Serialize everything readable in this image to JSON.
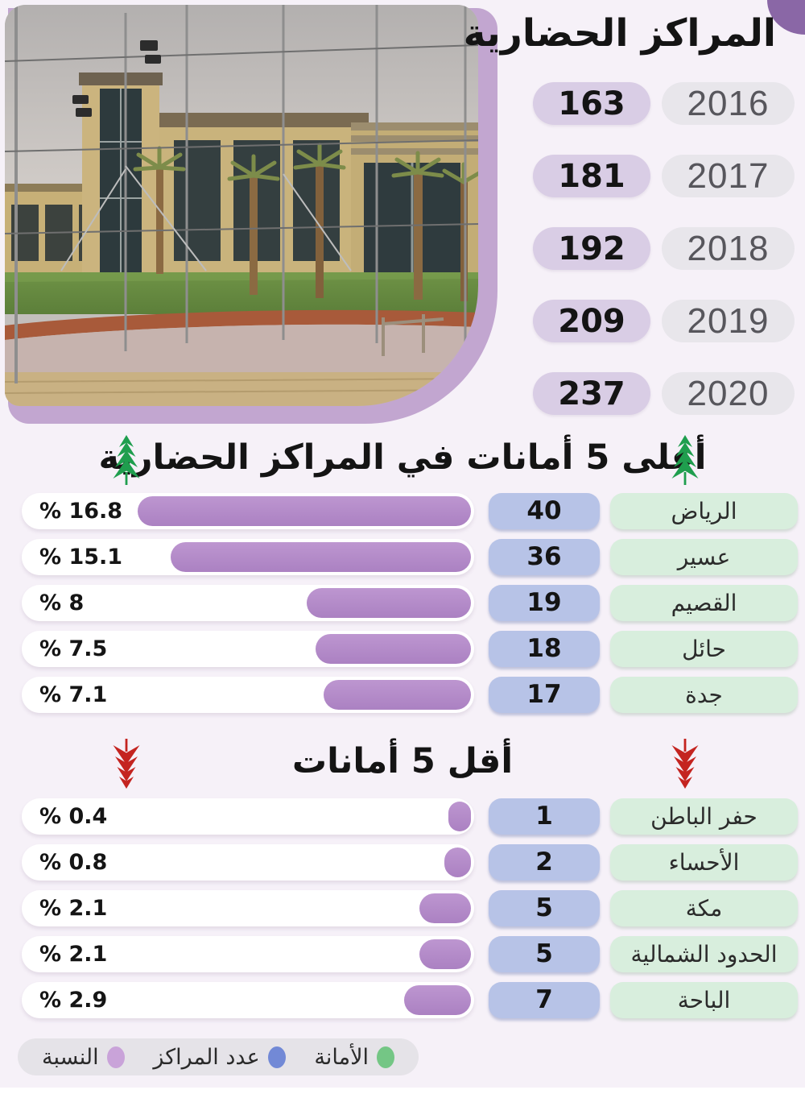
{
  "header": {
    "title": "المراكز الحضارية",
    "years": [
      {
        "value": "163",
        "year": "2016"
      },
      {
        "value": "181",
        "year": "2017"
      },
      {
        "value": "192",
        "year": "2018"
      },
      {
        "value": "209",
        "year": "2019"
      },
      {
        "value": "237",
        "year": "2020"
      }
    ]
  },
  "top5": {
    "title": "أعلى 5 أمانات في المراكز الحضارية",
    "rows": [
      {
        "name": "الرياض",
        "count": "40",
        "pct": 16.8,
        "pct_label": "% 16.8"
      },
      {
        "name": "عسير",
        "count": "36",
        "pct": 15.1,
        "pct_label": "% 15.1"
      },
      {
        "name": "القصيم",
        "count": "19",
        "pct": 8,
        "pct_label": "% 8"
      },
      {
        "name": "حائل",
        "count": "18",
        "pct": 7.5,
        "pct_label": "% 7.5"
      },
      {
        "name": "جدة",
        "count": "17",
        "pct": 7.1,
        "pct_label": "% 7.1"
      }
    ]
  },
  "bottom5": {
    "title": "أقل 5 أمانات",
    "rows": [
      {
        "name": "حفر الباطن",
        "count": "1",
        "pct": 0.4,
        "pct_label": "% 0.4"
      },
      {
        "name": "الأحساء",
        "count": "2",
        "pct": 0.8,
        "pct_label": "% 0.8"
      },
      {
        "name": "مكة",
        "count": "5",
        "pct": 2.1,
        "pct_label": "% 2.1"
      },
      {
        "name": "الحدود الشمالية",
        "count": "5",
        "pct": 2.1,
        "pct_label": "% 2.1"
      },
      {
        "name": "الباحة",
        "count": "7",
        "pct": 2.9,
        "pct_label": "% 2.9"
      }
    ]
  },
  "legend": {
    "items": [
      {
        "label": "الأمانة",
        "color": "#74c685"
      },
      {
        "label": "عدد المراكز",
        "color": "#7289d6"
      },
      {
        "label": "النسبة",
        "color": "#c9a3d9"
      }
    ]
  },
  "colors": {
    "accent_purple_bar": "#b28ac6",
    "value_pill": "#d9cde5",
    "year_pill": "#e8e6eb",
    "count_pill": "#b7c3e7",
    "name_pill": "#d8eedd",
    "up_arrow": "#1f9e4e",
    "down_arrow": "#c42420",
    "photo_border": "#c2a6d0",
    "corner_blob": "#8a67a6"
  },
  "chart_data": [
    {
      "type": "table",
      "title": "المراكز الحضارية",
      "categories": [
        "2016",
        "2017",
        "2018",
        "2019",
        "2020"
      ],
      "values": [
        163,
        181,
        192,
        209,
        237
      ]
    },
    {
      "type": "bar",
      "title": "أعلى 5 أمانات في المراكز الحضارية",
      "categories": [
        "الرياض",
        "عسير",
        "القصيم",
        "حائل",
        "جدة"
      ],
      "series": [
        {
          "name": "عدد المراكز",
          "values": [
            40,
            36,
            19,
            18,
            17
          ]
        },
        {
          "name": "النسبة %",
          "values": [
            16.8,
            15.1,
            8,
            7.5,
            7.1
          ]
        }
      ],
      "legend_position": "bottom"
    },
    {
      "type": "bar",
      "title": "أقل 5 أمانات",
      "categories": [
        "حفر الباطن",
        "الأحساء",
        "مكة",
        "الحدود الشمالية",
        "الباحة"
      ],
      "series": [
        {
          "name": "عدد المراكز",
          "values": [
            1,
            2,
            5,
            5,
            7
          ]
        },
        {
          "name": "النسبة %",
          "values": [
            0.4,
            0.8,
            2.1,
            2.1,
            2.9
          ]
        }
      ],
      "legend_position": "bottom"
    }
  ]
}
